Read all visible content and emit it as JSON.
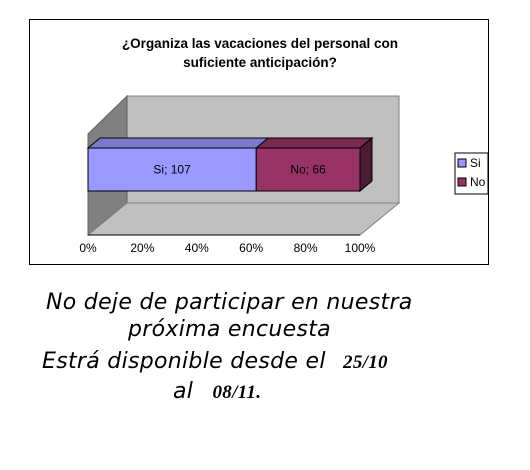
{
  "chart_data": {
    "type": "bar",
    "orientation": "horizontal-stacked-100",
    "title_line1": "¿Organiza las vacaciones del personal con",
    "title_line2": "suficiente anticipación?",
    "series": [
      {
        "name": "Si",
        "value": 107,
        "label": "Si; 107",
        "color": "#9999ff"
      },
      {
        "name": "No",
        "value": 66,
        "label": "No; 66",
        "color": "#993366"
      }
    ],
    "xticks": [
      "0%",
      "20%",
      "40%",
      "60%",
      "80%",
      "100%"
    ],
    "xlim": [
      0,
      100
    ],
    "legend_position": "right",
    "grid": false
  },
  "message": {
    "line1": "No deje de participar en nuestra",
    "line2": "próxima encuesta",
    "line3_text": "Estrá disponible desde el",
    "line3_date": "25/10",
    "line4_text": "al",
    "line4_date": "08/11."
  }
}
